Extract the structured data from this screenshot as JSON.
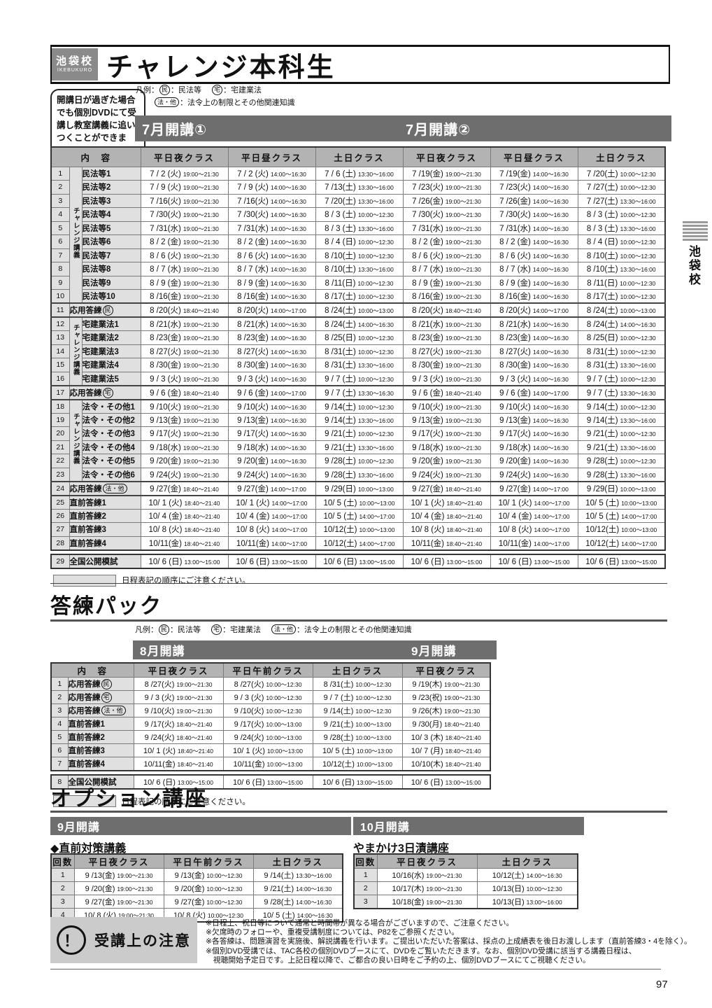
{
  "page": {
    "number": "97"
  },
  "side_tab": {
    "label": "池袋校"
  },
  "header": {
    "school": "池袋校",
    "school_en": "IKEBUKURO",
    "title": "チャレンジ本科生"
  },
  "dvd_note": "開講日が過ぎた場合でも個別DVDにて受講し教室講義に追いつくことができます。",
  "legend": {
    "prefix": "凡例：",
    "items": [
      {
        "mark": "民",
        "type": "circle",
        "text": "：民法等"
      },
      {
        "mark": "宅",
        "type": "circle",
        "text": "：宅建業法"
      },
      {
        "mark": "法・他",
        "type": "pill",
        "text": "：法令上の制限とその他関連知識"
      }
    ]
  },
  "main": {
    "bar1": "7月開講①",
    "bar2": "7月開講②",
    "content_header": "内　容",
    "class_headers": [
      "平日夜クラス",
      "平日昼クラス",
      "土日クラス",
      "平日夜クラス",
      "平日昼クラス",
      "土日クラス"
    ],
    "group_label": "チャレンジ講義",
    "note": "日程表記の順序にご注意ください。",
    "rows": [
      {
        "no": "1",
        "label": "民法等1",
        "gspan": 10,
        "cells": [
          "7 / 2 (火)|19:00～21:30",
          "7 / 2 (火)|14:00～16:30",
          "7 / 6 (土)|13:30～16:00",
          "7 /19(金)|19:00～21:30",
          "7 /19(金)|14:00～16:30",
          "7 /20(土)|10:00～12:30"
        ]
      },
      {
        "no": "2",
        "label": "民法等2",
        "cells": [
          "7 / 9 (火)|19:00～21:30",
          "7 / 9 (火)|14:00～16:30",
          "7 /13(土)|13:30～16:00",
          "7 /23(火)|19:00～21:30",
          "7 /23(火)|14:00～16:30",
          "7 /27(土)|10:00～12:30"
        ]
      },
      {
        "no": "3",
        "label": "民法等3",
        "cells": [
          "7 /16(火)|19:00～21:30",
          "7 /16(火)|14:00～16:30",
          "7 /20(土)|13:30～16:00",
          "7 /26(金)|19:00～21:30",
          "7 /26(金)|14:00～16:30",
          "7 /27(土)|13:30～16:00"
        ]
      },
      {
        "no": "4",
        "label": "民法等4",
        "cells": [
          "7 /30(火)|19:00～21:30",
          "7 /30(火)|14:00～16:30",
          "8 / 3 (土)|10:00～12:30",
          "7 /30(火)|19:00～21:30",
          "7 /30(火)|14:00～16:30",
          "8 / 3 (土)|10:00～12:30"
        ]
      },
      {
        "no": "5",
        "label": "民法等5",
        "cells": [
          "7 /31(水)|19:00～21:30",
          "7 /31(水)|14:00～16:30",
          "8 / 3 (土)|13:30～16:00",
          "7 /31(水)|19:00～21:30",
          "7 /31(水)|14:00～16:30",
          "8 / 3 (土)|13:30～16:00"
        ]
      },
      {
        "no": "6",
        "label": "民法等6",
        "cells": [
          "8 / 2 (金)|19:00～21:30",
          "8 / 2 (金)|14:00～16:30",
          "8 / 4 (日)|10:00～12:30",
          "8 / 2 (金)|19:00～21:30",
          "8 / 2 (金)|14:00～16:30",
          "8 / 4 (日)|10:00～12:30"
        ]
      },
      {
        "no": "7",
        "label": "民法等7",
        "cells": [
          "8 / 6 (火)|19:00～21:30",
          "8 / 6 (火)|14:00～16:30",
          "8 /10(土)|10:00～12:30",
          "8 / 6 (火)|19:00～21:30",
          "8 / 6 (火)|14:00～16:30",
          "8 /10(土)|10:00～12:30"
        ]
      },
      {
        "no": "8",
        "label": "民法等8",
        "cells": [
          "8 / 7 (水)|19:00～21:30",
          "8 / 7 (水)|14:00～16:30",
          "8 /10(土)|13:30～16:00",
          "8 / 7 (水)|19:00～21:30",
          "8 / 7 (水)|14:00～16:30",
          "8 /10(土)|13:30～16:00"
        ]
      },
      {
        "no": "9",
        "label": "民法等9",
        "cells": [
          "8 / 9 (金)|19:00～21:30",
          "8 / 9 (金)|14:00～16:30",
          "8 /11(日)|10:00～12:30",
          "8 / 9 (金)|19:00～21:30",
          "8 / 9 (金)|14:00～16:30",
          "8 /11(日)|10:00～12:30"
        ]
      },
      {
        "no": "10",
        "label": "民法等10",
        "cells": [
          "8 /16(金)|19:00～21:30",
          "8 /16(金)|14:00～16:30",
          "8 /17(土)|10:00～12:30",
          "8 /16(金)|19:00～21:30",
          "8 /16(金)|14:00～16:30",
          "8 /17(土)|10:00～12:30"
        ]
      },
      {
        "no": "11",
        "label": "応用答練",
        "mark": "民",
        "mtype": "circle",
        "wide": true,
        "sep": true,
        "cells": [
          "8 /20(火)|18:40～21:40",
          "8 /20(火)|14:00～17:00",
          "8 /24(土)|10:00～13:00",
          "8 /20(火)|18:40～21:40",
          "8 /20(火)|14:00～17:00",
          "8 /24(土)|10:00～13:00"
        ]
      },
      {
        "no": "12",
        "label": "宅建業法1",
        "gspan": 5,
        "sep": true,
        "cells": [
          "8 /21(水)|19:00～21:30",
          "8 /21(水)|14:00～16:30",
          "8 /24(土)|14:00～16:30",
          "8 /21(水)|19:00～21:30",
          "8 /21(水)|14:00～16:30",
          "8 /24(土)|14:00～16:30"
        ]
      },
      {
        "no": "13",
        "label": "宅建業法2",
        "cells": [
          "8 /23(金)|19:00～21:30",
          "8 /23(金)|14:00～16:30",
          "8 /25(日)|10:00～12:30",
          "8 /23(金)|19:00～21:30",
          "8 /23(金)|14:00～16:30",
          "8 /25(日)|10:00～12:30"
        ]
      },
      {
        "no": "14",
        "label": "宅建業法3",
        "cells": [
          "8 /27(火)|19:00～21:30",
          "8 /27(火)|14:00～16:30",
          "8 /31(土)|10:00～12:30",
          "8 /27(火)|19:00～21:30",
          "8 /27(火)|14:00～16:30",
          "8 /31(土)|10:00～12:30"
        ]
      },
      {
        "no": "15",
        "label": "宅建業法4",
        "cells": [
          "8 /30(金)|19:00～21:30",
          "8 /30(金)|14:00～16:30",
          "8 /31(土)|13:30～16:00",
          "8 /30(金)|19:00～21:30",
          "8 /30(金)|14:00～16:30",
          "8 /31(土)|13:30～16:00"
        ]
      },
      {
        "no": "16",
        "label": "宅建業法5",
        "cells": [
          "9 / 3 (火)|19:00～21:30",
          "9 / 3 (火)|14:00～16:30",
          "9 / 7 (土)|10:00～12:30",
          "9 / 3 (火)|19:00～21:30",
          "9 / 3 (火)|14:00～16:30",
          "9 / 7 (土)|10:00～12:30"
        ]
      },
      {
        "no": "17",
        "label": "応用答練",
        "mark": "宅",
        "mtype": "circle",
        "wide": true,
        "sep": true,
        "cells": [
          "9 / 6 (金)|18:40～21:40",
          "9 / 6 (金)|14:00～17:00",
          "9 / 7 (土)|13:30～16:30",
          "9 / 6 (金)|18:40～21:40",
          "9 / 6 (金)|14:00～17:00",
          "9 / 7 (土)|13:30～16:30"
        ]
      },
      {
        "no": "18",
        "label": "法令・その他1",
        "gspan": 6,
        "sep": true,
        "cells": [
          "9 /10(火)|19:00～21:30",
          "9 /10(火)|14:00～16:30",
          "9 /14(土)|10:00～12:30",
          "9 /10(火)|19:00～21:30",
          "9 /10(火)|14:00～16:30",
          "9 /14(土)|10:00～12:30"
        ]
      },
      {
        "no": "19",
        "label": "法令・その他2",
        "cells": [
          "9 /13(金)|19:00～21:30",
          "9 /13(金)|14:00～16:30",
          "9 /14(土)|13:30～16:00",
          "9 /13(金)|19:00～21:30",
          "9 /13(金)|14:00～16:30",
          "9 /14(土)|13:30～16:00"
        ]
      },
      {
        "no": "20",
        "label": "法令・その他3",
        "cells": [
          "9 /17(火)|19:00～21:30",
          "9 /17(火)|14:00～16:30",
          "9 /21(土)|10:00～12:30",
          "9 /17(火)|19:00～21:30",
          "9 /17(火)|14:00～16:30",
          "9 /21(土)|10:00～12:30"
        ]
      },
      {
        "no": "21",
        "label": "法令・その他4",
        "cells": [
          "9 /18(水)|19:00～21:30",
          "9 /18(水)|14:00～16:30",
          "9 /21(土)|13:30～16:00",
          "9 /18(水)|19:00～21:30",
          "9 /18(水)|14:00～16:30",
          "9 /21(土)|13:30～16:00"
        ]
      },
      {
        "no": "22",
        "label": "法令・その他5",
        "cells": [
          "9 /20(金)|19:00～21:30",
          "9 /20(金)|14:00～16:30",
          "9 /28(土)|10:00～12:30",
          "9 /20(金)|19:00～21:30",
          "9 /20(金)|14:00～16:30",
          "9 /28(土)|10:00～12:30"
        ]
      },
      {
        "no": "23",
        "label": "法令・その他6",
        "cells": [
          "9 /24(火)|19:00～21:30",
          "9 /24(火)|14:00～16:30",
          "9 /28(土)|13:30～16:00",
          "9 /24(火)|19:00～21:30",
          "9 /24(火)|14:00～16:30",
          "9 /28(土)|13:30～16:00"
        ]
      },
      {
        "no": "24",
        "label": "応用答練",
        "mark": "法・他",
        "mtype": "pill",
        "wide": true,
        "sep": true,
        "cells": [
          "9 /27(金)|18:40～21:40",
          "9 /27(金)|14:00～17:00",
          "9 /29(日)|10:00～13:00",
          "9 /27(金)|18:40～21:40",
          "9 /27(金)|14:00～17:00",
          "9 /29(日)|10:00～13:00"
        ]
      },
      {
        "no": "25",
        "label": "直前答練1",
        "wide": true,
        "sep": true,
        "cells": [
          "10/ 1 (火)|18:40～21:40",
          "10/ 1 (火)|14:00～17:00",
          "10/ 5 (土)|10:00～13:00",
          "10/ 1 (火)|18:40～21:40",
          "10/ 1 (火)|14:00～17:00",
          "10/ 5 (土)|10:00～13:00"
        ]
      },
      {
        "no": "26",
        "label": "直前答練2",
        "wide": true,
        "cells": [
          "10/ 4 (金)|18:40～21:40",
          "10/ 4 (金)|14:00～17:00",
          "10/ 5 (土)|14:00～17:00",
          "10/ 4 (金)|18:40～21:40",
          "10/ 4 (金)|14:00～17:00",
          "10/ 5 (土)|14:00～17:00"
        ]
      },
      {
        "no": "27",
        "label": "直前答練3",
        "wide": true,
        "cells": [
          "10/ 8 (火)|18:40～21:40",
          "10/ 8 (火)|14:00～17:00",
          "10/12(土)|10:00～13:00",
          "10/ 8 (火)|18:40～21:40",
          "10/ 8 (火)|14:00～17:00",
          "10/12(土)|10:00～13:00"
        ]
      },
      {
        "no": "28",
        "label": "直前答練4",
        "wide": true,
        "cells": [
          "10/11(金)|18:40～21:40",
          "10/11(金)|14:00～17:00",
          "10/12(土)|14:00～17:00",
          "10/11(金)|18:40～21:40",
          "10/11(金)|14:00～17:00",
          "10/12(土)|14:00～17:00"
        ]
      },
      {
        "no": "29",
        "label": "全国公開模試",
        "wide": true,
        "final": true,
        "cells": [
          "10/ 6 (日)|13:00～15:00",
          "10/ 6 (日)|13:00～15:00",
          "10/ 6 (日)|13:00～15:00",
          "10/ 6 (日)|13:00～15:00",
          "10/ 6 (日)|13:00～15:00",
          "10/ 6 (日)|13:00～15:00"
        ]
      }
    ]
  },
  "touren": {
    "title": "答練パック",
    "bar1": "8月開講",
    "bar2": "9月開講",
    "content_header": "内　容",
    "class_headers": [
      "平日夜クラス",
      "平日午前クラス",
      "土日クラス",
      "平日夜クラス"
    ],
    "note": "日程表記の順序にご注意ください。",
    "rows": [
      {
        "no": "1",
        "label": "応用答練",
        "mark": "民",
        "mtype": "circle",
        "cells": [
          "8 /27(火)|19:00～21:30",
          "8 /27(火)|10:00～12:30",
          "8 /31(土)|10:00～12:30",
          "9 /19(木)|19:00～21:30"
        ]
      },
      {
        "no": "2",
        "label": "応用答練",
        "mark": "宅",
        "mtype": "circle",
        "cells": [
          "9 / 3 (火)|19:00～21:30",
          "9 / 3 (火)|10:00～12:30",
          "9 / 7 (土)|10:00～12:30",
          "9 /23(祝)|19:00～21:30"
        ]
      },
      {
        "no": "3",
        "label": "応用答練",
        "mark": "法・他",
        "mtype": "pill",
        "cells": [
          "9 /10(火)|19:00～21:30",
          "9 /10(火)|10:00～12:30",
          "9 /14(土)|10:00～12:30",
          "9 /26(木)|19:00～21:30"
        ]
      },
      {
        "no": "4",
        "label": "直前答練1",
        "cells": [
          "9 /17(火)|18:40～21:40",
          "9 /17(火)|10:00～13:00",
          "9 /21(土)|10:00～13:00",
          "9 /30(月)|18:40～21:40"
        ]
      },
      {
        "no": "5",
        "label": "直前答練2",
        "cells": [
          "9 /24(火)|18:40～21:40",
          "9 /24(火)|10:00～13:00",
          "9 /28(土)|10:00～13:00",
          "10/ 3 (木)|18:40～21:40"
        ]
      },
      {
        "no": "6",
        "label": "直前答練3",
        "cells": [
          "10/ 1 (火)|18:40～21:40",
          "10/ 1 (火)|10:00～13:00",
          "10/ 5 (土)|10:00～13:00",
          "10/ 7 (月)|18:40～21:40"
        ]
      },
      {
        "no": "7",
        "label": "直前答練4",
        "cells": [
          "10/11(金)|18:40～21:40",
          "10/11(金)|10:00～13:00",
          "10/12(土)|10:00～13:00",
          "10/10(木)|18:40～21:40"
        ]
      },
      {
        "no": "8",
        "label": "全国公開模試",
        "final": true,
        "cells": [
          "10/ 6 (日)|13:00～15:00",
          "10/ 6 (日)|13:00～15:00",
          "10/ 6 (日)|13:00～15:00",
          "10/ 6 (日)|13:00～15:00"
        ]
      }
    ]
  },
  "option": {
    "title": "オプション講座",
    "left": {
      "bar": "9月開講",
      "subtitle": "◆直前対策講義",
      "count_header": "回数",
      "class_headers": [
        "平日夜クラス",
        "平日午前クラス",
        "土日クラス"
      ],
      "rows": [
        {
          "no": "1",
          "cells": [
            "9 /13(金)|19:00～21:30",
            "9 /13(金)|10:00～12:30",
            "9 /14(土)|13:30～16:00"
          ]
        },
        {
          "no": "2",
          "cells": [
            "9 /20(金)|19:00～21:30",
            "9 /20(金)|10:00～12:30",
            "9 /21(土)|14:00～16:30"
          ]
        },
        {
          "no": "3",
          "cells": [
            "9 /27(金)|19:00～21:30",
            "9 /27(金)|10:00～12:30",
            "9 /28(土)|14:00～16:30"
          ]
        },
        {
          "no": "4",
          "cells": [
            "10/ 8 (火)|19:00～21:30",
            "10/ 8 (火)|10:00～12:30",
            "10/ 5 (土)|14:00～16:30"
          ]
        }
      ]
    },
    "right": {
      "bar": "10月開講",
      "subtitle": "やまかけ3日漬講座",
      "count_header": "回数",
      "class_headers": [
        "平日夜クラス",
        "土日クラス"
      ],
      "rows": [
        {
          "no": "1",
          "cells": [
            "10/16(水)|19:00～21:30",
            "10/12(土)|14:00～16:30"
          ]
        },
        {
          "no": "2",
          "cells": [
            "10/17(木)|19:00～21:30",
            "10/13(日)|10:00～12:30"
          ]
        },
        {
          "no": "3",
          "cells": [
            "10/18(金)|19:00～21:30",
            "10/13(日)|13:00～16:00"
          ]
        }
      ]
    }
  },
  "notice": {
    "icon": "！",
    "title": "受講上の注意",
    "lines": [
      "※日程上、祝日等について通常と時間帯が異なる場合がございますので、ご注意ください。",
      "※欠席時のフォローや、重複受講制度については、P82をご参照ください。",
      "※各答練は、問題演習を実施後、解説講義を行います。ご提出いただいた答案は、採点の上成績表を後日お渡しします（直前答練3・4を除く）。",
      "※個別DVD受講では、TAC各校の個別DVDブースにて、DVDをご覧いただきます。なお、個別DVD受講に該当する講義日程は、",
      "　視聴開始予定日です。上記日程以降で、ご都合の良い日時をご予約の上、個別DVDブースにてご視聴ください。"
    ]
  }
}
